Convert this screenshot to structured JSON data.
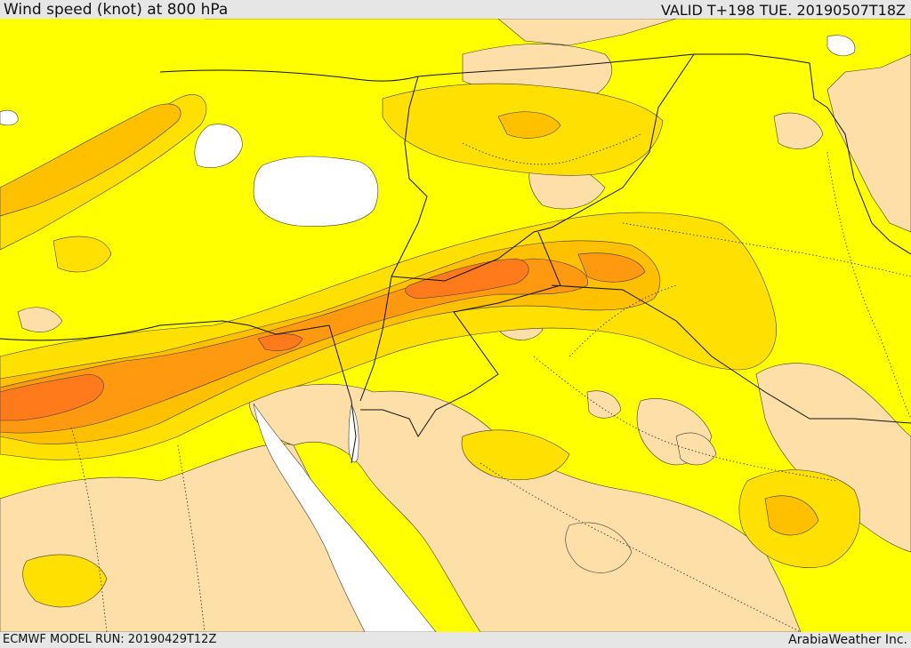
{
  "header": {
    "title": "Wind speed (knot) at 800 hPa",
    "valid": "VALID T+198 TUE. 20190507T18Z"
  },
  "footer": {
    "model_run": "ECMWF MODEL RUN: 20190429T12Z",
    "brand": "ArabiaWeather Inc."
  },
  "map": {
    "colors": {
      "sea": "#ffffff",
      "low": "#ffdfa8",
      "moderate": "#ffff00",
      "fresh": "#ffe000",
      "strong": "#ffc000",
      "very_strong": "#ff9a10",
      "max": "#ff7a1a",
      "contour": "#3a3a3a",
      "border": "#111111"
    }
  }
}
